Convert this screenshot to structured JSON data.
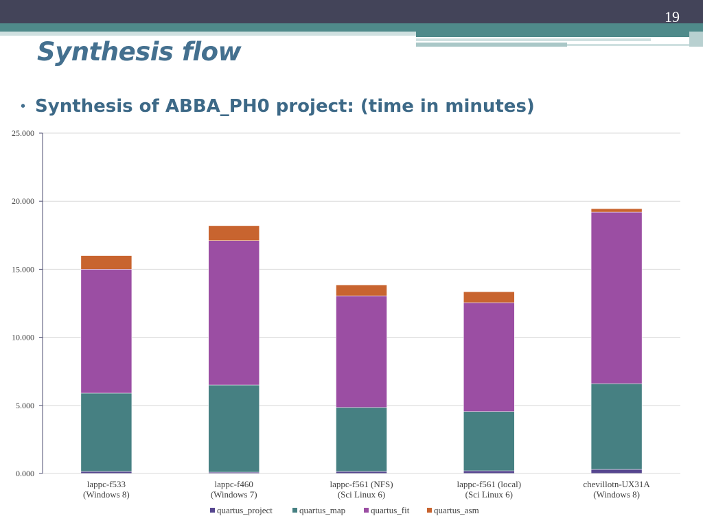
{
  "slide": {
    "number": "19",
    "title": "Synthesis flow",
    "bullet": "Synthesis of ABBA_PH0 project: (time in minutes)"
  },
  "colors": {
    "quartus_project": "#56468f",
    "quartus_map": "#468082",
    "quartus_fit": "#9b4ea3",
    "quartus_asm": "#c8642f"
  },
  "chart_data": {
    "type": "bar",
    "stacked": true,
    "categories": [
      [
        "lappc-f533",
        "(Windows 8)"
      ],
      [
        "lappc-f460",
        "(Windows 7)"
      ],
      [
        "lappc-f561 (NFS)",
        "(Sci Linux 6)"
      ],
      [
        "lappc-f561 (local)",
        "(Sci Linux 6)"
      ],
      [
        "chevillotn-UX31A",
        "(Windows 8)"
      ]
    ],
    "series": [
      {
        "name": "quartus_project",
        "values": [
          0.15,
          0.1,
          0.15,
          0.2,
          0.3
        ]
      },
      {
        "name": "quartus_map",
        "values": [
          5.75,
          6.4,
          4.7,
          4.35,
          6.3
        ]
      },
      {
        "name": "quartus_fit",
        "values": [
          9.1,
          10.6,
          8.2,
          8.0,
          12.6
        ]
      },
      {
        "name": "quartus_asm",
        "values": [
          1.0,
          1.1,
          0.8,
          0.8,
          0.25
        ]
      }
    ],
    "yticks": [
      "0.000",
      "5.000",
      "10.000",
      "15.000",
      "20.000",
      "25.000"
    ],
    "ylim": [
      0,
      25
    ],
    "grid": true,
    "legend": "bottom"
  }
}
